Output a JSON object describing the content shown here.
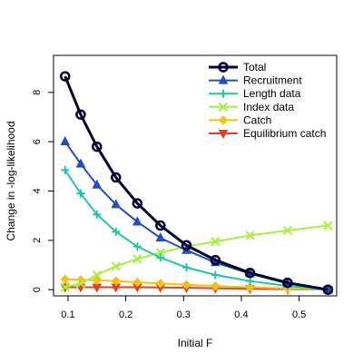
{
  "chart_data": {
    "type": "line",
    "title": "",
    "xlabel": "Initial F",
    "ylabel": "Change in -log-likelihood",
    "xlim": [
      0.075,
      0.565
    ],
    "ylim": [
      -0.25,
      9.5
    ],
    "x_ticks": [
      0.1,
      0.2,
      0.3,
      0.4,
      0.5
    ],
    "x_tick_labels": [
      "0.1",
      "0.2",
      "0.3",
      "0.4",
      "0.5"
    ],
    "y_ticks": [
      0,
      2,
      4,
      6,
      8
    ],
    "y_tick_labels": [
      "0",
      "2",
      "4",
      "6",
      "8"
    ],
    "grid": false,
    "legend_position": "top-right",
    "x": [
      0.095,
      0.122,
      0.15,
      0.183,
      0.22,
      0.26,
      0.305,
      0.355,
      0.415,
      0.48,
      0.55
    ],
    "series": [
      {
        "name": "Total",
        "color": "#000033",
        "marker": "circle",
        "line_width": 3,
        "values": [
          8.65,
          7.1,
          5.8,
          4.55,
          3.5,
          2.6,
          1.8,
          1.2,
          0.68,
          0.28,
          0.0
        ]
      },
      {
        "name": "Recruitment",
        "color": "#1f4fc4",
        "marker": "triangle-up",
        "line_width": 2,
        "values": [
          6.0,
          5.1,
          4.25,
          3.45,
          2.75,
          2.1,
          1.6,
          1.1,
          0.65,
          0.25,
          0.0
        ]
      },
      {
        "name": "Length data",
        "color": "#1dc8a8",
        "marker": "plus",
        "line_width": 2,
        "values": [
          4.85,
          3.9,
          3.05,
          2.35,
          1.75,
          1.3,
          0.9,
          0.6,
          0.35,
          0.15,
          0.0
        ]
      },
      {
        "name": "Index data",
        "color": "#a8f03c",
        "marker": "cross",
        "line_width": 2,
        "values": [
          0.1,
          0.25,
          0.6,
          0.95,
          1.25,
          1.5,
          1.75,
          1.95,
          2.2,
          2.4,
          2.6
        ]
      },
      {
        "name": "Catch",
        "color": "#f2c20f",
        "marker": "diamond",
        "line_width": 2,
        "values": [
          0.42,
          0.4,
          0.38,
          0.35,
          0.3,
          0.25,
          0.2,
          0.15,
          0.1,
          0.05,
          0.0
        ]
      },
      {
        "name": "Equilibrium catch",
        "color": "#e8401c",
        "marker": "triangle-down",
        "line_width": 2,
        "values": [
          0.1,
          0.1,
          0.1,
          0.1,
          0.1,
          0.09,
          0.08,
          0.06,
          0.04,
          0.02,
          0.0
        ]
      }
    ]
  }
}
